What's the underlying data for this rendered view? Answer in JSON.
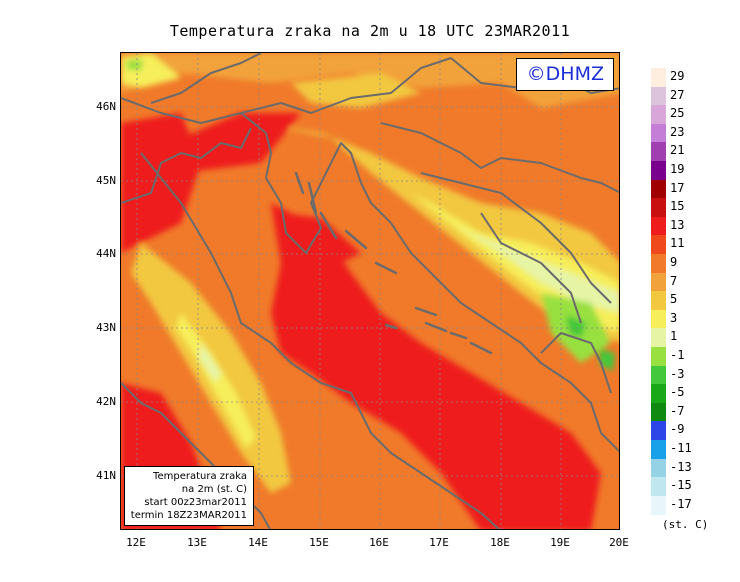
{
  "title": "Temperatura zraka na 2m u 18 UTC 23MAR2011",
  "logo": "©DHMZ",
  "info_box": [
    "Temperatura zraka",
    "na 2m (st. C)",
    "start 00z23mar2011",
    "termin 18Z23MAR2011"
  ],
  "lat_labels": [
    "46N",
    "45N",
    "44N",
    "43N",
    "42N",
    "41N"
  ],
  "lon_labels": [
    "12E",
    "13E",
    "14E",
    "15E",
    "16E",
    "17E",
    "18E",
    "19E",
    "20E"
  ],
  "legend": {
    "labels": [
      "29",
      "27",
      "25",
      "23",
      "21",
      "19",
      "17",
      "15",
      "13",
      "11",
      "9",
      "7",
      "5",
      "3",
      "1",
      "-1",
      "-3",
      "-5",
      "-7",
      "-9",
      "-11",
      "-13",
      "-15",
      "-17"
    ],
    "colors": [
      "#fdeee0",
      "#dcc4dc",
      "#d8a6d8",
      "#c47ed8",
      "#a040b0",
      "#78008c",
      "#a00000",
      "#c81010",
      "#ee1c1c",
      "#f04a1c",
      "#f07a2a",
      "#f2a23a",
      "#f2c840",
      "#f6ee5a",
      "#e6f4a6",
      "#98e040",
      "#42c83a",
      "#1aa818",
      "#108a10",
      "#2c46e8",
      "#18a0e8",
      "#96d2e6",
      "#c0e6f0",
      "#e8f6fb"
    ],
    "unit": "(st. C)"
  }
}
